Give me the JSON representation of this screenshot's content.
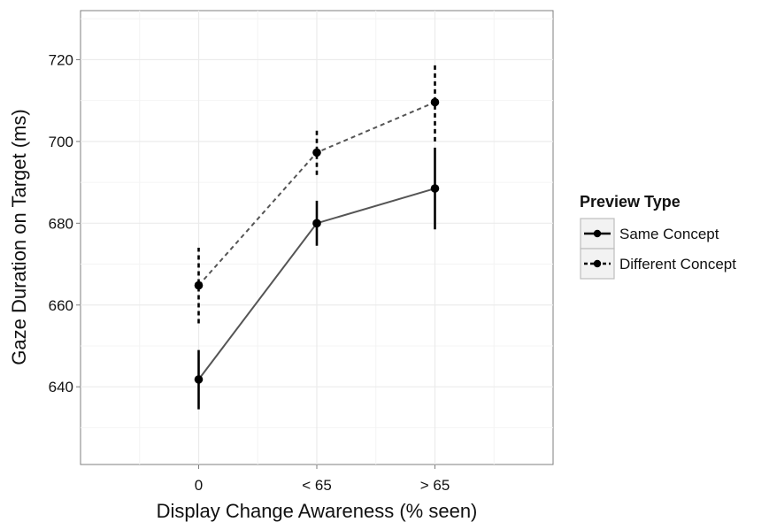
{
  "chart_data": {
    "type": "line",
    "title": "",
    "xlabel": "Display Change Awareness (% seen)",
    "ylabel": "Gaze Duration on Target (ms)",
    "categories": [
      "0",
      "< 65",
      "> 65"
    ],
    "ylim": [
      621,
      732
    ],
    "yticks": [
      640,
      660,
      680,
      700,
      720
    ],
    "grid": true,
    "legend": {
      "title": "Preview Type",
      "position": "right"
    },
    "series": [
      {
        "name": "Same Concept",
        "line_style": "solid",
        "color": "#555555",
        "values": [
          641.8,
          680.0,
          688.5
        ],
        "error_low": [
          634.5,
          674.5,
          678.5
        ],
        "error_high": [
          649.0,
          685.5,
          698.5
        ]
      },
      {
        "name": "Different Concept",
        "line_style": "dashed",
        "color": "#555555",
        "values": [
          664.8,
          697.3,
          709.6
        ],
        "error_low": [
          655.5,
          691.8,
          700.0
        ],
        "error_high": [
          674.0,
          703.0,
          719.2
        ]
      }
    ]
  }
}
